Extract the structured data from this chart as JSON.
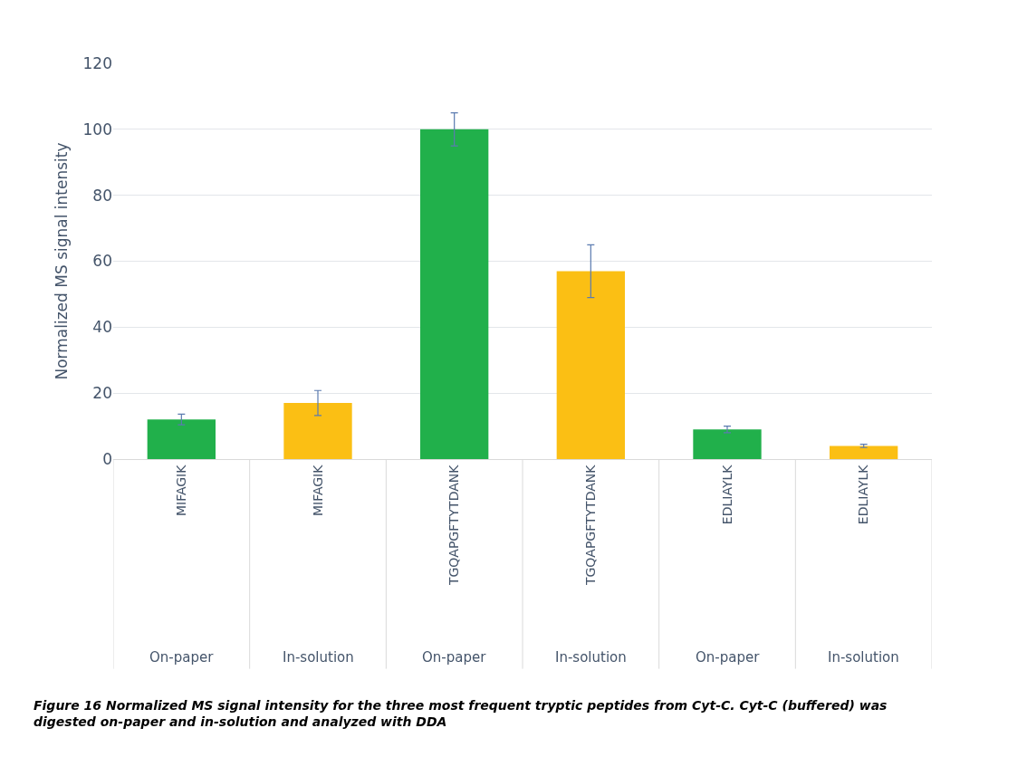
{
  "chart_data": {
    "type": "bar",
    "title": "Figure 16 Normalized MS signal intensity for the three most frequent tryptic peptides from Cyt-C. Cyt-C (buffered) was digested on-paper and in-solution and analyzed with DDA",
    "ylabel": "Normalized MS signal intensity",
    "categories": [
      "MIFAGIK",
      "MIFAGIK",
      "TGQAPGFTYTDANK",
      "TGQAPGFTYTDANK",
      "EDLIAYLK",
      "EDLIAYLK"
    ],
    "values": [
      12,
      17,
      100,
      57,
      9,
      4
    ],
    "colors": [
      "#21b04b",
      "#fbbf14",
      "#21b04b",
      "#fbbf14",
      "#21b04b",
      "#fbbf14"
    ],
    "errors": [
      1.6,
      3.8,
      5,
      8,
      1,
      0.5
    ],
    "annotations": [
      "On-paper",
      "In-solution",
      "On-paper",
      "In-solution",
      "On-paper",
      "In-solution"
    ],
    "ylim": [
      0,
      120
    ],
    "yticks": [
      0,
      20,
      40,
      60,
      80,
      100,
      120
    ],
    "grid": "y",
    "legend": false
  }
}
